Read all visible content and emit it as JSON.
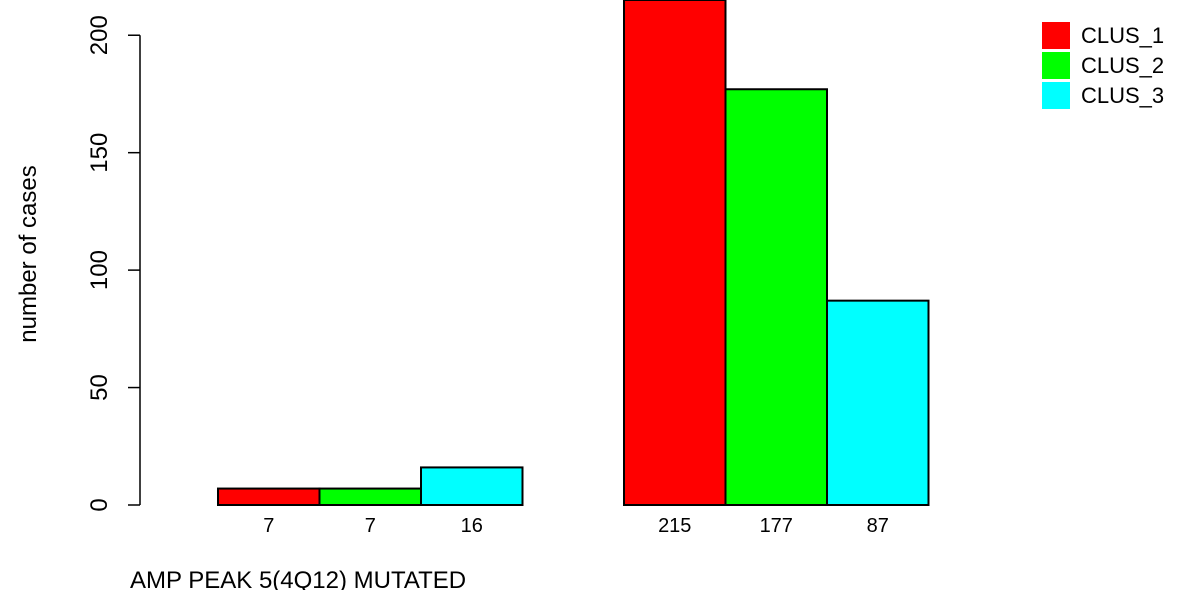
{
  "chart_data": {
    "type": "bar",
    "layout": "grouped",
    "groups": [
      "AMP PEAK  5(4Q12) MUTATED",
      ""
    ],
    "series": [
      {
        "name": "CLUS_1",
        "color": "#ff0000",
        "values": [
          7,
          215
        ]
      },
      {
        "name": "CLUS_2",
        "color": "#00ff00",
        "values": [
          7,
          177
        ]
      },
      {
        "name": "CLUS_3",
        "color": "#00ffff",
        "values": [
          16,
          87
        ]
      }
    ],
    "bar_labels": [
      [
        "7",
        "7",
        "16"
      ],
      [
        "215",
        "177",
        "87"
      ]
    ],
    "ylabel": "number of cases",
    "ylim": [
      0,
      215
    ],
    "yticks": [
      0,
      50,
      100,
      150,
      200
    ],
    "legend": {
      "position": "top-right"
    },
    "grid": false
  }
}
